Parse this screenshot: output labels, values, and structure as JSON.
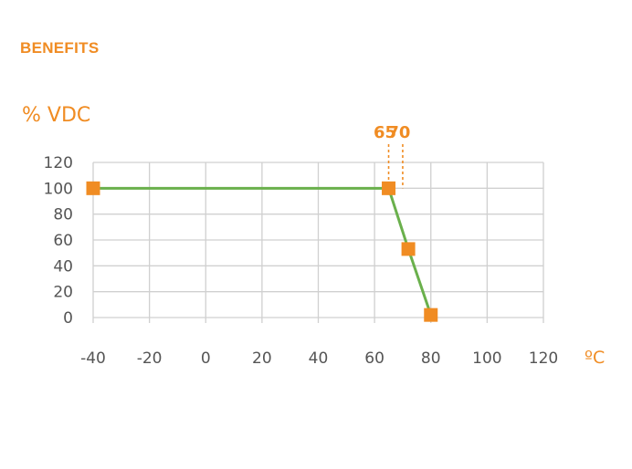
{
  "heading": "BENEFITS",
  "chart_data": {
    "type": "line",
    "ylabel": "% VDC",
    "xlabel": "ºC",
    "x_ticks": [
      -40,
      -20,
      0,
      20,
      40,
      60,
      80,
      100,
      120
    ],
    "y_ticks": [
      0,
      20,
      40,
      60,
      80,
      100,
      120
    ],
    "xlim": [
      -40,
      120
    ],
    "ylim": [
      0,
      120
    ],
    "grid": true,
    "series": [
      {
        "x": [
          -40,
          65,
          72,
          80
        ],
        "y": [
          100,
          100,
          53,
          2
        ]
      }
    ],
    "annotations": [
      {
        "x": 65,
        "label": "65"
      },
      {
        "x": 70,
        "label": "70"
      }
    ],
    "colors": {
      "line": "#6ab04c",
      "marker": "#f08c23",
      "accent": "#f08c23",
      "grid": "#d0d0d0",
      "text": "#555555"
    }
  }
}
